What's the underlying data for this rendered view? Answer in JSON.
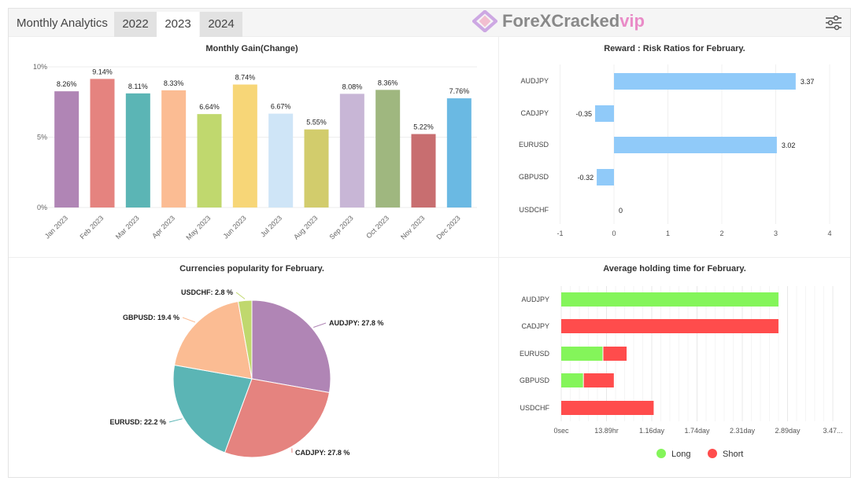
{
  "header": {
    "title": "Monthly Analytics",
    "tabs": [
      {
        "label": "2022",
        "active": false
      },
      {
        "label": "2023",
        "active": true
      },
      {
        "label": "2024",
        "active": false
      }
    ],
    "settings_icon": "sliders-icon"
  },
  "watermark": {
    "text": "ForeXCracked",
    "suffix": "vip"
  },
  "chart_data": [
    {
      "type": "bar",
      "title": "Monthly Gain(Change)",
      "categories": [
        "Jan 2023",
        "Feb 2023",
        "Mar 2023",
        "Apr 2023",
        "May 2023",
        "Jun 2023",
        "Jul 2023",
        "Aug 2023",
        "Sep 2023",
        "Oct 2023",
        "Nov 2023",
        "Dec 2023"
      ],
      "values": [
        8.26,
        9.14,
        8.11,
        8.33,
        6.64,
        8.74,
        6.67,
        5.55,
        8.08,
        8.36,
        5.22,
        7.76
      ],
      "labels": [
        "8.26%",
        "9.14%",
        "8.11%",
        "8.33%",
        "6.64%",
        "8.74%",
        "6.67%",
        "5.55%",
        "8.08%",
        "8.36%",
        "5.22%",
        "7.76%"
      ],
      "colors": [
        "#b085b5",
        "#e5837f",
        "#5bb5b5",
        "#fbbc93",
        "#c0d86e",
        "#f7d677",
        "#cfe5f7",
        "#d2cc6c",
        "#c8b6d6",
        "#9fb77f",
        "#c86e70",
        "#6ab9e3"
      ],
      "yticks": [
        "0%",
        "5%",
        "10%"
      ],
      "ylim": [
        0,
        10
      ],
      "grid": true
    },
    {
      "type": "bar",
      "orientation": "horizontal",
      "title": "Reward : Risk Ratios for February.",
      "categories": [
        "AUDJPY",
        "CADJPY",
        "EURUSD",
        "GBPUSD",
        "USDCHF"
      ],
      "values": [
        3.37,
        -0.35,
        3.02,
        -0.32,
        0
      ],
      "labels": [
        "3.37",
        "-0.35",
        "3.02",
        "-0.32",
        "0"
      ],
      "xticks": [
        "-1",
        "0",
        "1",
        "2",
        "3",
        "4"
      ],
      "xlim": [
        -1,
        4
      ],
      "color": "#90caf9",
      "grid": true
    },
    {
      "type": "pie",
      "title": "Currencies popularity for February.",
      "categories": [
        "AUDJPY",
        "CADJPY",
        "EURUSD",
        "GBPUSD",
        "USDCHF"
      ],
      "values": [
        27.8,
        27.8,
        22.2,
        19.4,
        2.8
      ],
      "labels": [
        "AUDJPY: 27.8 %",
        "CADJPY: 27.8 %",
        "EURUSD: 22.2 %",
        "GBPUSD: 19.4 %",
        "USDCHF: 2.8 %"
      ],
      "colors": [
        "#b085b5",
        "#e5837f",
        "#5bb5b5",
        "#fbbc93",
        "#c0d86e"
      ]
    },
    {
      "type": "bar",
      "orientation": "horizontal",
      "stacked": true,
      "title": "Average holding time for February.",
      "categories": [
        "AUDJPY",
        "CADJPY",
        "EURUSD",
        "GBPUSD",
        "USDCHF"
      ],
      "series": [
        {
          "name": "Long",
          "color": "#84f55a",
          "values": [
            2.9,
            0,
            0.56,
            0.3,
            0
          ]
        },
        {
          "name": "Short",
          "color": "#ff4c4c",
          "values": [
            0,
            2.9,
            0.32,
            0.41,
            1.24
          ]
        }
      ],
      "unit": "day",
      "xticks": [
        "0sec",
        "13.89hr",
        "1.16day",
        "1.74day",
        "2.31day",
        "2.89day",
        "3.47..."
      ],
      "xlim": [
        0,
        3.47
      ],
      "legend": "bottom"
    }
  ]
}
